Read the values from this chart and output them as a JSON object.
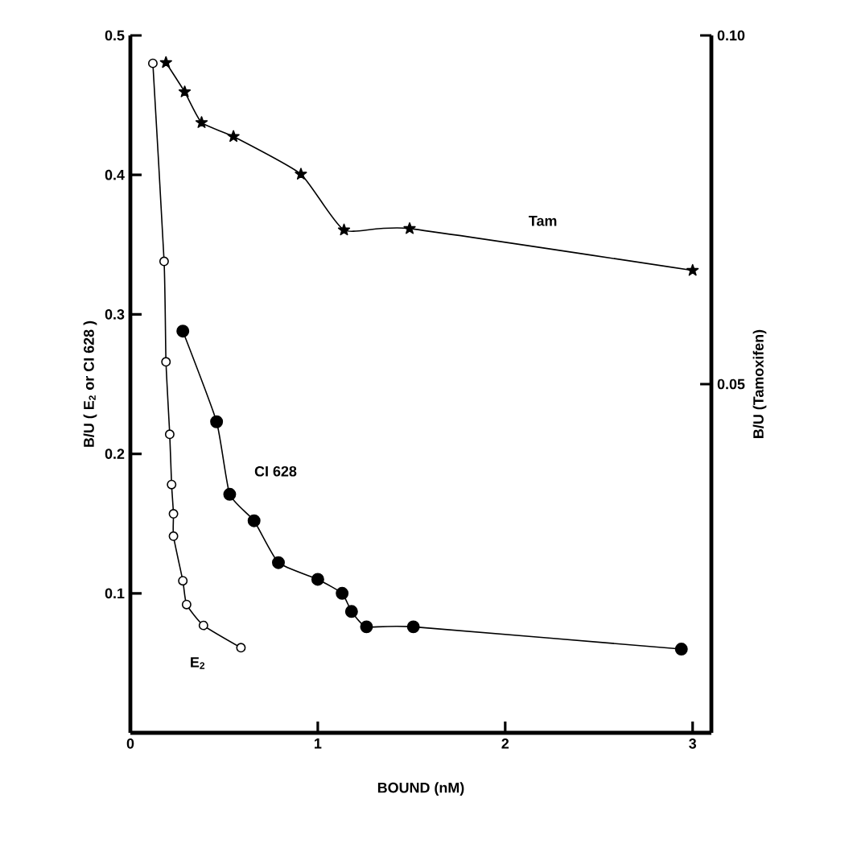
{
  "chart_data": {
    "type": "line",
    "xlabel": "BOUND (nM)",
    "ylabel": "B/U   ( E$_{2}$  or  CI 628 )",
    "y2label": "B/U   (Tamoxifen)",
    "xlim": [
      0,
      3.1
    ],
    "xticks": [
      0,
      1,
      2,
      3
    ],
    "ylim": [
      0,
      0.5
    ],
    "yticks": [
      0.1,
      0.2,
      0.3,
      0.4,
      0.5
    ],
    "y2lim": [
      0,
      0.1
    ],
    "y2ticks": [
      0.05,
      {
        "value": 0.1,
        "label": "0.10"
      }
    ],
    "line_style": "solid",
    "series": [
      {
        "name": "E$_{2}$",
        "color": "#000000",
        "marker": "circle",
        "x": [
          0.12,
          0.18,
          0.19,
          0.21,
          0.22,
          0.23,
          0.23,
          0.28,
          0.3,
          0.39,
          0.59
        ],
        "values": [
          0.48,
          0.338,
          0.266,
          0.214,
          0.178,
          0.157,
          0.141,
          0.109,
          0.092,
          0.077,
          0.061
        ]
      },
      {
        "name": "CI 628",
        "color": "#000000",
        "marker": "circle",
        "x": [
          0.28,
          0.46,
          0.53,
          0.66,
          0.79,
          1.0,
          1.13,
          1.18,
          1.26,
          1.51,
          2.94
        ],
        "values": [
          0.288,
          0.223,
          0.171,
          0.152,
          0.122,
          0.11,
          0.1,
          0.087,
          0.076,
          0.076,
          0.06
        ]
      },
      {
        "name": "Tam",
        "color": "#000000",
        "marker": "star",
        "axis": "y2",
        "x": [
          0.19,
          0.29,
          0.38,
          0.55,
          0.91,
          1.14,
          1.49,
          3.0
        ],
        "values": [
          0.0961,
          0.0919,
          0.0875,
          0.0855,
          0.0801,
          0.0721,
          0.0723,
          0.0663
        ]
      }
    ]
  }
}
